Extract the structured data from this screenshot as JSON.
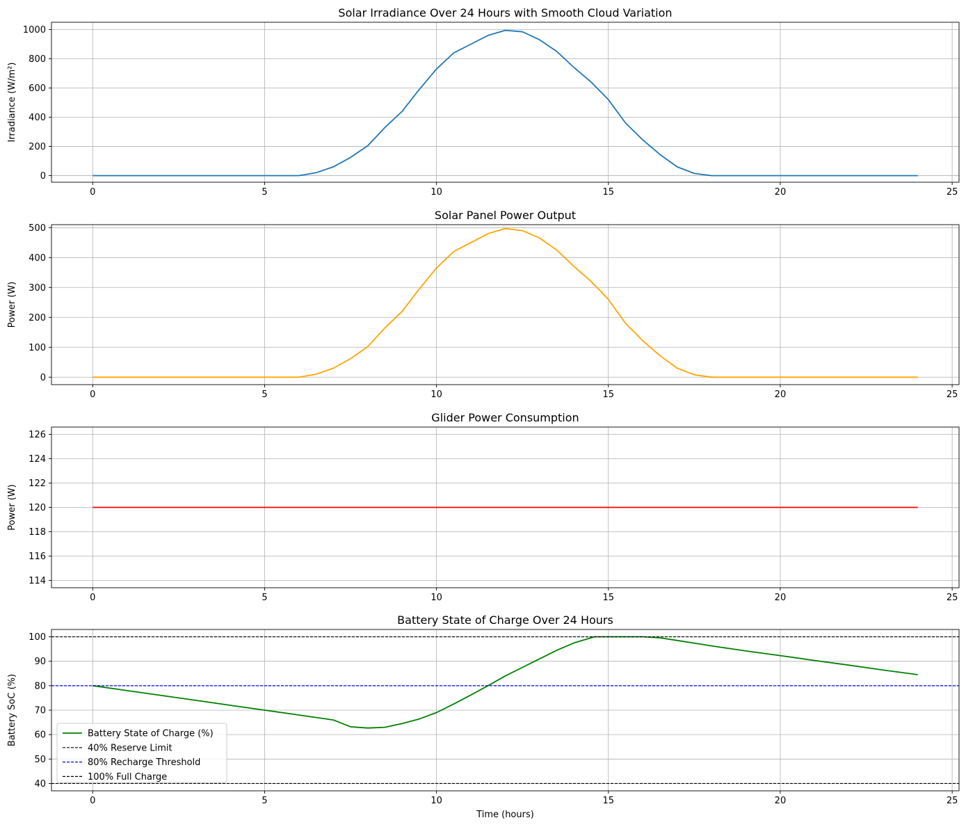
{
  "chart_data": [
    {
      "type": "line",
      "title": "Solar Irradiance Over 24 Hours with Smooth Cloud Variation",
      "xlabel": "",
      "ylabel": "Irradiance (W/m²)",
      "xlim": [
        -1.2,
        25.2
      ],
      "ylim": [
        -45,
        1050
      ],
      "xticks": [
        0,
        5,
        10,
        15,
        20,
        25
      ],
      "yticks": [
        0,
        200,
        400,
        600,
        800,
        1000
      ],
      "grid": true,
      "series": [
        {
          "color": "#1f77b4",
          "x": [
            0,
            6,
            6.5,
            7,
            7.5,
            8,
            8.5,
            9,
            9.5,
            10,
            10.5,
            11,
            11.5,
            12,
            12.5,
            13,
            13.5,
            14,
            14.5,
            15,
            15.5,
            16,
            16.5,
            17,
            17.5,
            18,
            24
          ],
          "y": [
            0,
            0,
            20,
            60,
            125,
            205,
            330,
            440,
            590,
            730,
            840,
            900,
            960,
            995,
            985,
            930,
            850,
            740,
            640,
            520,
            360,
            245,
            145,
            60,
            15,
            0,
            0
          ]
        }
      ]
    },
    {
      "type": "line",
      "title": "Solar Panel Power Output",
      "xlabel": "",
      "ylabel": "Power (W)",
      "xlim": [
        -1.2,
        25.2
      ],
      "ylim": [
        -25,
        510
      ],
      "xticks": [
        0,
        5,
        10,
        15,
        20,
        25
      ],
      "yticks": [
        0,
        100,
        200,
        300,
        400,
        500
      ],
      "grid": true,
      "series": [
        {
          "color": "#ffa500",
          "x": [
            0,
            6,
            6.5,
            7,
            7.5,
            8,
            8.5,
            9,
            9.5,
            10,
            10.5,
            11,
            11.5,
            12,
            12.5,
            13,
            13.5,
            14,
            14.5,
            15,
            15.5,
            16,
            16.5,
            17,
            17.5,
            18,
            24
          ],
          "y": [
            0,
            0,
            10,
            30,
            62,
            102,
            165,
            220,
            295,
            365,
            420,
            450,
            480,
            497,
            490,
            465,
            425,
            370,
            320,
            260,
            180,
            122,
            72,
            30,
            8,
            0,
            0
          ]
        }
      ]
    },
    {
      "type": "line",
      "title": "Glider Power Consumption",
      "xlabel": "",
      "ylabel": "Power (W)",
      "xlim": [
        -1.2,
        25.2
      ],
      "ylim": [
        113.4,
        126.6
      ],
      "xticks": [
        0,
        5,
        10,
        15,
        20,
        25
      ],
      "yticks": [
        114,
        116,
        118,
        120,
        122,
        124,
        126
      ],
      "grid": true,
      "series": [
        {
          "color": "#ff0000",
          "x": [
            0,
            24
          ],
          "y": [
            120,
            120
          ]
        }
      ]
    },
    {
      "type": "line",
      "title": "Battery State of Charge Over 24 Hours",
      "xlabel": "Time (hours)",
      "ylabel": "Battery SoC (%)",
      "xlim": [
        -1.2,
        25.2
      ],
      "ylim": [
        37,
        103
      ],
      "xticks": [
        0,
        5,
        10,
        15,
        20,
        25
      ],
      "yticks": [
        40,
        50,
        60,
        70,
        80,
        90,
        100
      ],
      "grid": true,
      "series": [
        {
          "name": "Battery State of Charge (%)",
          "color": "#008000",
          "x": [
            0,
            1,
            2,
            3,
            4,
            5,
            6,
            7,
            7.5,
            8,
            8.5,
            9,
            9.5,
            10,
            10.5,
            11,
            11.5,
            12,
            12.5,
            13,
            13.5,
            14,
            14.6,
            15,
            16,
            16.5,
            17,
            18,
            19,
            20,
            21,
            22,
            23,
            24
          ],
          "y": [
            80,
            78,
            76,
            74,
            72,
            70,
            68,
            66,
            63.2,
            62.7,
            63,
            64.5,
            66.4,
            69,
            72.5,
            76.2,
            80,
            84,
            87.5,
            91,
            94.5,
            97.5,
            100,
            100,
            100,
            99.6,
            98.5,
            96.3,
            94.2,
            92.3,
            90.3,
            88.4,
            86.4,
            84.5
          ]
        },
        {
          "name": "40% Reserve Limit",
          "color": "#000000",
          "dashed": true,
          "hline": 40
        },
        {
          "name": "80% Recharge Threshold",
          "color": "#0000ff",
          "dashed": true,
          "hline": 80
        },
        {
          "name": "100% Full Charge",
          "color": "#000000",
          "dashed": true,
          "hline": 100
        }
      ],
      "legend": "lower-left"
    }
  ]
}
